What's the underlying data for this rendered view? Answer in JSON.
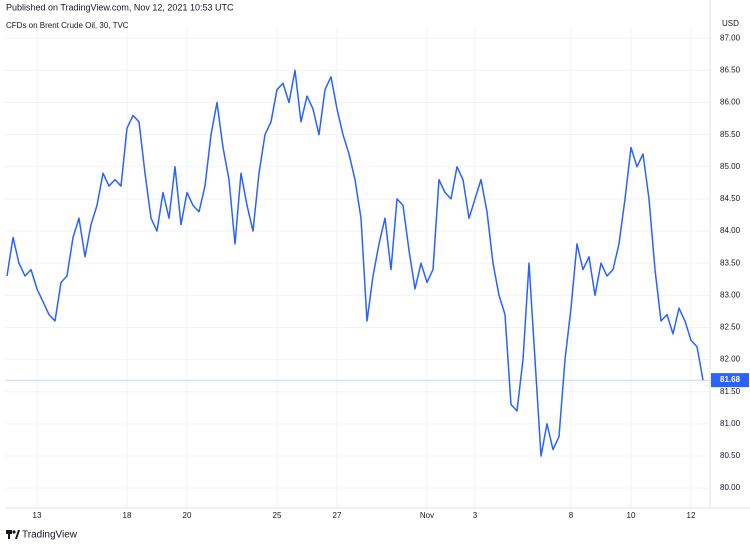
{
  "chart_data": {
    "type": "line",
    "title": "Published on TradingView.com, Nov 12, 2021 10:53 UTC",
    "subtitle": "CFDs on Brent Crude Oil, 30, TVC",
    "y_axis_label": "USD",
    "brand": "TradingView",
    "categories": [
      null,
      null,
      null,
      null,
      null,
      "13",
      null,
      null,
      null,
      null,
      null,
      null,
      null,
      null,
      null,
      null,
      null,
      null,
      null,
      null,
      "18",
      null,
      null,
      null,
      null,
      null,
      null,
      null,
      null,
      null,
      "20",
      null,
      null,
      null,
      null,
      null,
      null,
      null,
      null,
      null,
      null,
      null,
      null,
      null,
      null,
      "25",
      null,
      null,
      null,
      null,
      null,
      null,
      null,
      null,
      null,
      "27",
      null,
      null,
      null,
      null,
      null,
      null,
      null,
      null,
      null,
      null,
      null,
      null,
      null,
      null,
      "Nov",
      null,
      null,
      null,
      null,
      null,
      null,
      null,
      "3",
      null,
      null,
      null,
      null,
      null,
      null,
      null,
      null,
      null,
      null,
      null,
      null,
      null,
      null,
      null,
      "8",
      null,
      null,
      null,
      null,
      null,
      null,
      null,
      null,
      null,
      "10",
      null,
      null,
      null,
      null,
      null,
      null,
      null,
      null,
      null,
      "12",
      null,
      null
    ],
    "values": [
      83.3,
      83.9,
      83.5,
      83.3,
      83.4,
      83.1,
      82.9,
      82.7,
      82.6,
      83.2,
      83.3,
      83.9,
      84.2,
      83.6,
      84.1,
      84.4,
      84.9,
      84.7,
      84.8,
      84.7,
      85.6,
      85.8,
      85.7,
      84.9,
      84.2,
      84.0,
      84.6,
      84.2,
      85.0,
      84.1,
      84.6,
      84.4,
      84.3,
      84.7,
      85.5,
      86.0,
      85.3,
      84.8,
      83.8,
      84.9,
      84.4,
      84.0,
      84.9,
      85.5,
      85.7,
      86.2,
      86.3,
      86.0,
      86.5,
      85.7,
      86.1,
      85.9,
      85.5,
      86.2,
      86.4,
      85.9,
      85.5,
      85.2,
      84.8,
      84.2,
      82.6,
      83.3,
      83.8,
      84.2,
      83.4,
      84.5,
      84.4,
      83.7,
      83.1,
      83.5,
      83.2,
      83.4,
      84.8,
      84.6,
      84.5,
      85.0,
      84.8,
      84.2,
      84.5,
      84.8,
      84.3,
      83.5,
      83.0,
      82.7,
      81.3,
      81.2,
      82.0,
      83.5,
      82.0,
      80.5,
      81.0,
      80.6,
      80.8,
      82.0,
      82.8,
      83.8,
      83.4,
      83.6,
      83.0,
      83.5,
      83.3,
      83.4,
      83.8,
      84.5,
      85.3,
      85.0,
      85.2,
      84.5,
      83.4,
      82.6,
      82.7,
      82.4,
      82.8,
      82.6,
      82.3,
      82.2,
      81.68
    ],
    "color": "#2962ff",
    "last_price": 81.68,
    "ylim": [
      79.69,
      87.16
    ],
    "yticks": [
      {
        "value": 80,
        "label": "80.00"
      },
      {
        "value": 80.5,
        "label": "80.50"
      },
      {
        "value": 81,
        "label": "81.00"
      },
      {
        "value": 81.5,
        "label": "81.50"
      },
      {
        "value": 82,
        "label": "82.00"
      },
      {
        "value": 82.5,
        "label": "82.50"
      },
      {
        "value": 83,
        "label": "83.00"
      },
      {
        "value": 83.5,
        "label": "83.50"
      },
      {
        "value": 84,
        "label": "84.00"
      },
      {
        "value": 84.5,
        "label": "84.50"
      },
      {
        "value": 85,
        "label": "85.00"
      },
      {
        "value": 85.5,
        "label": "85.50"
      },
      {
        "value": 86,
        "label": "86.00"
      },
      {
        "value": 86.5,
        "label": "86.50"
      },
      {
        "value": 87,
        "label": "87.00"
      }
    ],
    "grid": true
  }
}
